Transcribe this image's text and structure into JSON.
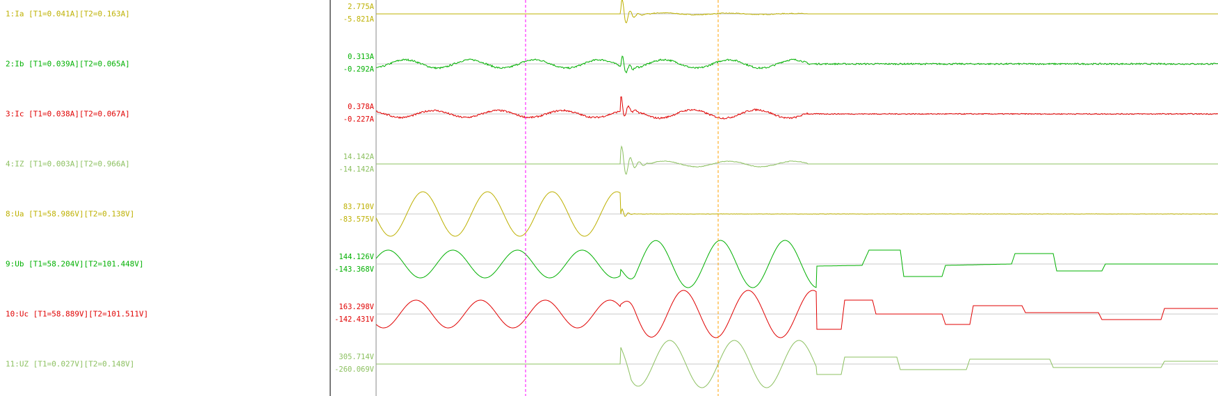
{
  "channels": [
    {
      "label": "1:Ia [T1=0.041A][T2=0.163A]",
      "max": "2.775A",
      "min": "-5.821A",
      "color": "#bdb000"
    },
    {
      "label": "2:Ib [T1=0.039A][T2=0.065A]",
      "max": "0.313A",
      "min": "-0.292A",
      "color": "#00b000"
    },
    {
      "label": "3:Ic [T1=0.038A][T2=0.067A]",
      "max": "0.378A",
      "min": "-0.227A",
      "color": "#e00000"
    },
    {
      "label": "4:IZ [T1=0.003A][T2=0.966A]",
      "max": "14.142A",
      "min": "-14.142A",
      "color": "#8cc060"
    },
    {
      "label": "8:Ua [T1=58.986V][T2=0.138V]",
      "max": "83.710V",
      "min": "-83.575V",
      "color": "#bdb000"
    },
    {
      "label": "9:Ub [T1=58.204V][T2=101.448V]",
      "max": "144.126V",
      "min": "-143.368V",
      "color": "#00b000"
    },
    {
      "label": "10:Uc [T1=58.889V][T2=101.511V]",
      "max": "163.298V",
      "min": "-142.431V",
      "color": "#e00000"
    },
    {
      "label": "11:UZ [T1=0.027V][T2=0.148V]",
      "max": "305.714V",
      "min": "-260.069V",
      "color": "#8cc060"
    }
  ],
  "cursors": {
    "t1_color": "#ff00ff",
    "t2_color": "#ffa000"
  }
}
